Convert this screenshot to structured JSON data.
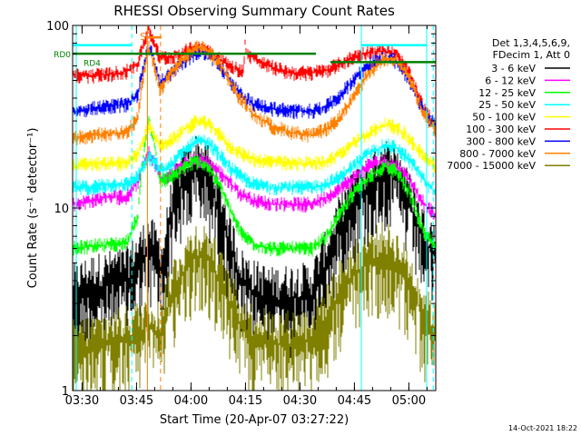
{
  "chart_data": {
    "type": "line",
    "title": "RHESSI Observing Summary Count Rates",
    "xlabel": "Start Time (20-Apr-07 03:27:22)",
    "ylabel": "Count Rate (s⁻¹ detector⁻¹)",
    "x_unit": "minutes since 03:27:22",
    "xlim": [
      0,
      100
    ],
    "ylim": [
      1,
      100
    ],
    "yscale": "log",
    "grid": false,
    "legend_position": "right",
    "x_ticks": [
      {
        "v": 2.6,
        "label": "03:30"
      },
      {
        "v": 17.6,
        "label": "03:45"
      },
      {
        "v": 32.6,
        "label": "04:00"
      },
      {
        "v": 47.6,
        "label": "04:15"
      },
      {
        "v": 62.6,
        "label": "04:30"
      },
      {
        "v": 77.6,
        "label": "04:45"
      },
      {
        "v": 92.6,
        "label": "05:00"
      }
    ],
    "y_ticks": [
      {
        "v": 1,
        "label": "1"
      },
      {
        "v": 10,
        "label": "10"
      },
      {
        "v": 100,
        "label": "100"
      }
    ],
    "legend_header": [
      "Det 1,3,4,5,6,9,",
      "FDecim 1, Att 0"
    ],
    "series": [
      {
        "name": "3 - 6 keV",
        "color": "#000000",
        "points": [
          [
            0,
            3.2
          ],
          [
            5,
            3.6
          ],
          [
            10,
            3.8
          ],
          [
            15,
            4.0
          ],
          [
            18,
            4.8
          ],
          [
            21,
            6.0
          ],
          [
            25,
            4.5
          ],
          [
            28,
            11
          ],
          [
            31,
            14
          ],
          [
            34,
            16.5
          ],
          [
            37,
            15
          ],
          [
            40,
            10
          ],
          [
            43,
            6.5
          ],
          [
            46,
            4.0
          ],
          [
            50,
            3.4
          ],
          [
            55,
            3.1
          ],
          [
            60,
            3.2
          ],
          [
            66,
            3.3
          ],
          [
            70,
            5.0
          ],
          [
            74,
            8
          ],
          [
            78,
            11
          ],
          [
            82,
            13
          ],
          [
            86,
            16
          ],
          [
            89,
            15
          ],
          [
            92,
            11
          ],
          [
            95,
            8
          ],
          [
            97,
            6.5
          ],
          [
            100,
            5.5
          ]
        ]
      },
      {
        "name": "6 - 12 keV",
        "color": "#ff00ff",
        "points": [
          [
            0,
            10.5
          ],
          [
            5,
            11
          ],
          [
            10,
            11.5
          ],
          [
            15,
            11.5
          ],
          [
            18,
            14
          ],
          [
            21,
            20
          ],
          [
            25,
            14
          ],
          [
            28,
            16
          ],
          [
            31,
            17.5
          ],
          [
            34,
            18.5
          ],
          [
            37,
            18
          ],
          [
            40,
            16
          ],
          [
            43,
            14
          ],
          [
            46,
            12
          ],
          [
            50,
            11
          ],
          [
            55,
            10.5
          ],
          [
            60,
            10.5
          ],
          [
            66,
            10.5
          ],
          [
            70,
            11.5
          ],
          [
            74,
            13
          ],
          [
            78,
            15
          ],
          [
            82,
            17.5
          ],
          [
            86,
            18
          ],
          [
            89,
            17
          ],
          [
            92,
            15
          ],
          [
            95,
            12
          ],
          [
            97,
            10.5
          ],
          [
            100,
            9
          ]
        ]
      },
      {
        "name": "12 - 25 keV",
        "color": "#00ff00",
        "points": [
          [
            0,
            6.0
          ],
          [
            5,
            6.2
          ],
          [
            10,
            6.3
          ],
          [
            15,
            6.5
          ],
          [
            18,
            9
          ],
          [
            21,
            30
          ],
          [
            24,
            14
          ],
          [
            28,
            15
          ],
          [
            31,
            17
          ],
          [
            34,
            18
          ],
          [
            37,
            17
          ],
          [
            40,
            14
          ],
          [
            43,
            10
          ],
          [
            46,
            7.5
          ],
          [
            50,
            6.3
          ],
          [
            55,
            6.0
          ],
          [
            60,
            6.0
          ],
          [
            66,
            6.0
          ],
          [
            70,
            7
          ],
          [
            74,
            9.5
          ],
          [
            78,
            12.5
          ],
          [
            82,
            15
          ],
          [
            86,
            17
          ],
          [
            89,
            16
          ],
          [
            92,
            13
          ],
          [
            95,
            9
          ],
          [
            97,
            7.2
          ],
          [
            100,
            6.0
          ]
        ]
      },
      {
        "name": "25 - 50 keV",
        "color": "#00ffff",
        "points": [
          [
            0,
            13
          ],
          [
            5,
            13
          ],
          [
            10,
            13.5
          ],
          [
            15,
            13.5
          ],
          [
            18,
            15
          ],
          [
            21,
            19
          ],
          [
            25,
            16
          ],
          [
            28,
            18
          ],
          [
            31,
            21
          ],
          [
            34,
            23.5
          ],
          [
            37,
            23
          ],
          [
            40,
            20
          ],
          [
            43,
            17
          ],
          [
            46,
            15
          ],
          [
            50,
            13.5
          ],
          [
            55,
            13
          ],
          [
            60,
            13
          ],
          [
            66,
            13
          ],
          [
            70,
            13.5
          ],
          [
            74,
            15
          ],
          [
            78,
            17.5
          ],
          [
            82,
            20
          ],
          [
            86,
            22
          ],
          [
            89,
            21.5
          ],
          [
            92,
            19
          ],
          [
            95,
            16
          ],
          [
            97,
            14
          ],
          [
            100,
            12
          ]
        ]
      },
      {
        "name": "50 - 100 keV",
        "color": "#ffff00",
        "points": [
          [
            0,
            17
          ],
          [
            5,
            17.5
          ],
          [
            10,
            17.5
          ],
          [
            15,
            17.5
          ],
          [
            18,
            20
          ],
          [
            21,
            28
          ],
          [
            24,
            22
          ],
          [
            28,
            24
          ],
          [
            31,
            27
          ],
          [
            34,
            30
          ],
          [
            37,
            29
          ],
          [
            40,
            26
          ],
          [
            43,
            22
          ],
          [
            46,
            20
          ],
          [
            50,
            18.5
          ],
          [
            55,
            18
          ],
          [
            60,
            17.5
          ],
          [
            66,
            17.5
          ],
          [
            70,
            18
          ],
          [
            74,
            20
          ],
          [
            78,
            23
          ],
          [
            82,
            26
          ],
          [
            86,
            28.5
          ],
          [
            89,
            28
          ],
          [
            92,
            25
          ],
          [
            95,
            21
          ],
          [
            97,
            19
          ],
          [
            100,
            17
          ]
        ]
      },
      {
        "name": "100 - 300 keV",
        "color": "#ff0000",
        "points": [
          [
            0,
            53
          ],
          [
            5,
            53
          ],
          [
            10,
            54
          ],
          [
            15,
            56
          ],
          [
            18,
            62
          ],
          [
            21,
            95
          ],
          [
            24,
            66
          ],
          [
            28,
            68
          ],
          [
            31,
            72
          ],
          [
            34,
            76
          ],
          [
            37,
            74
          ],
          [
            40,
            67
          ],
          [
            43,
            60
          ],
          [
            46,
            57
          ],
          [
            47.2,
            56
          ],
          [
            47.4,
            82
          ],
          [
            48,
            70
          ],
          [
            52,
            62
          ],
          [
            56,
            58
          ],
          [
            60,
            55
          ],
          [
            66,
            55
          ],
          [
            70,
            57
          ],
          [
            74,
            62
          ],
          [
            78,
            68
          ],
          [
            82,
            72
          ],
          [
            86,
            72
          ],
          [
            89,
            69
          ],
          [
            92,
            58
          ],
          [
            95,
            42
          ],
          [
            97,
            34
          ],
          [
            100,
            28
          ]
        ]
      },
      {
        "name": "300 - 800 keV",
        "color": "#0000ff",
        "points": [
          [
            0,
            34
          ],
          [
            5,
            35
          ],
          [
            10,
            36
          ],
          [
            15,
            37
          ],
          [
            18,
            42
          ],
          [
            21,
            78
          ],
          [
            24,
            48
          ],
          [
            28,
            57
          ],
          [
            31,
            64
          ],
          [
            34,
            70
          ],
          [
            37,
            71
          ],
          [
            40,
            62
          ],
          [
            43,
            50
          ],
          [
            46,
            42
          ],
          [
            50,
            37
          ],
          [
            55,
            35
          ],
          [
            60,
            34
          ],
          [
            66,
            34
          ],
          [
            70,
            36
          ],
          [
            74,
            42
          ],
          [
            78,
            52
          ],
          [
            82,
            62
          ],
          [
            86,
            66
          ],
          [
            89,
            64
          ],
          [
            92,
            52
          ],
          [
            95,
            40
          ],
          [
            97,
            33
          ],
          [
            100,
            28
          ]
        ]
      },
      {
        "name": "800 - 7000 keV",
        "color": "#ff8000",
        "points": [
          [
            0,
            24
          ],
          [
            5,
            25
          ],
          [
            10,
            25.5
          ],
          [
            15,
            26
          ],
          [
            18,
            31
          ],
          [
            21,
            75
          ],
          [
            24,
            44
          ],
          [
            28,
            58
          ],
          [
            31,
            68
          ],
          [
            34,
            76
          ],
          [
            37,
            74
          ],
          [
            40,
            64
          ],
          [
            43,
            50
          ],
          [
            46,
            40
          ],
          [
            50,
            32
          ],
          [
            55,
            28
          ],
          [
            60,
            26
          ],
          [
            66,
            25
          ],
          [
            70,
            27
          ],
          [
            74,
            32
          ],
          [
            78,
            42
          ],
          [
            82,
            56
          ],
          [
            86,
            66
          ],
          [
            89,
            65
          ],
          [
            92,
            55
          ],
          [
            95,
            40
          ],
          [
            97,
            32
          ],
          [
            100,
            26
          ]
        ]
      },
      {
        "name": "7000 - 15000 keV",
        "color": "#808000",
        "points": [
          [
            0,
            1.6
          ],
          [
            5,
            1.7
          ],
          [
            10,
            1.8
          ],
          [
            15,
            1.9
          ],
          [
            18,
            2.0
          ],
          [
            21,
            2.3
          ],
          [
            24,
            2.0
          ],
          [
            28,
            3.6
          ],
          [
            31,
            4.5
          ],
          [
            34,
            5.5
          ],
          [
            37,
            5.3
          ],
          [
            40,
            4.2
          ],
          [
            43,
            3.0
          ],
          [
            46,
            2.3
          ],
          [
            50,
            1.9
          ],
          [
            55,
            1.8
          ],
          [
            60,
            1.8
          ],
          [
            66,
            1.9
          ],
          [
            70,
            2.5
          ],
          [
            74,
            3.5
          ],
          [
            78,
            4.4
          ],
          [
            82,
            5.1
          ],
          [
            86,
            5.5
          ],
          [
            89,
            5.0
          ],
          [
            92,
            4.0
          ],
          [
            95,
            3.0
          ],
          [
            97,
            2.4
          ],
          [
            100,
            2.0
          ]
        ]
      }
    ],
    "annotations": [
      {
        "label": "RD0",
        "color": "#008000",
        "y": 70
      },
      {
        "label": "RD4",
        "color": "#008000",
        "y": 63
      },
      {
        "label": "S",
        "color": "#ff8000",
        "x": 20.5
      }
    ],
    "footer_date": "14-Oct-2021 18:22"
  }
}
